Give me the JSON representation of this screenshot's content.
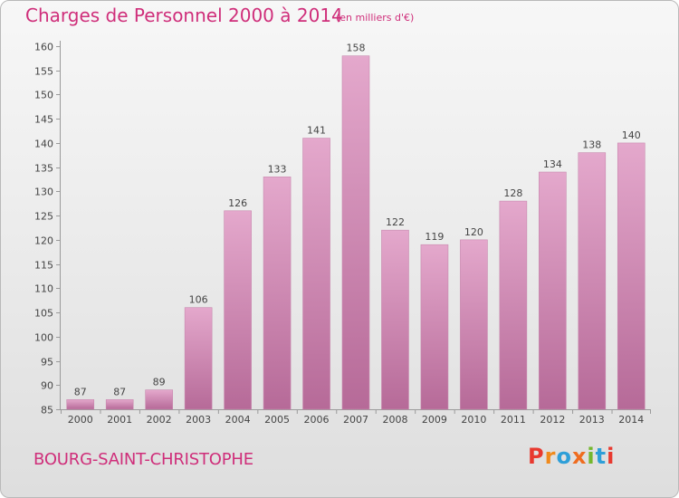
{
  "header": {
    "title": "Charges de Personnel 2000 à 2014",
    "subtitle": "(en milliers d'€)"
  },
  "footer": {
    "town": "BOURG-SAINT-CHRISTOPHE",
    "logo": [
      "P",
      "r",
      "o",
      "x",
      "i",
      "t",
      "i"
    ],
    "logo_colors": [
      "#e8392f",
      "#f08a1c",
      "#2e9fd8",
      "#ef6c1f",
      "#74b72e",
      "#2e9fd8",
      "#e8392f"
    ]
  },
  "colors": {
    "bar_top": "#e4a8cc",
    "bar_bottom": "#b66a98",
    "bar_edge": "#c888ae",
    "title": "#cf2e7a",
    "grid": "#d4d4d4"
  },
  "chart_data": {
    "type": "bar",
    "categories": [
      "2000",
      "2001",
      "2002",
      "2003",
      "2004",
      "2005",
      "2006",
      "2007",
      "2008",
      "2009",
      "2010",
      "2011",
      "2012",
      "2013",
      "2014"
    ],
    "values": [
      87,
      87,
      89,
      106,
      126,
      133,
      141,
      158,
      122,
      119,
      120,
      128,
      134,
      138,
      140
    ],
    "ylim": [
      85,
      160
    ],
    "yticks": [
      85,
      90,
      95,
      100,
      105,
      110,
      115,
      120,
      125,
      130,
      135,
      140,
      145,
      150,
      155,
      160
    ],
    "grid": false,
    "xlabel": "",
    "ylabel": ""
  }
}
